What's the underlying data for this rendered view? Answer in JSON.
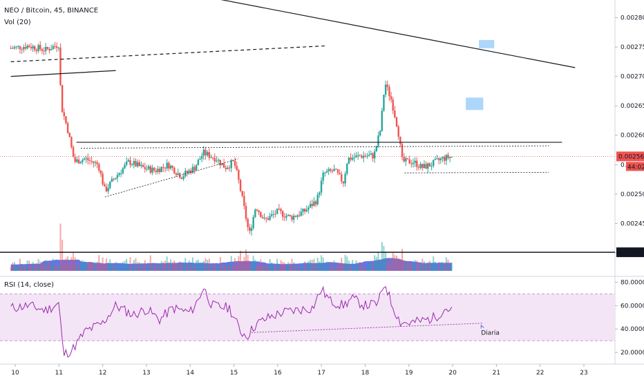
{
  "header": {
    "symbol": "NEO / Bitcoin, 45, BINANCE",
    "volume_indicator": "Vol (20)"
  },
  "rsi_panel": {
    "label": "RSI (14, close)",
    "annotation": "Diaria"
  },
  "price_axis": {
    "ticks": [
      "0.002800",
      "0.002750",
      "0.002700",
      "0.002650",
      "0.002600",
      "0.002550",
      "0.002500",
      "0.002450",
      "0.002400"
    ],
    "last_price": "0.002564",
    "countdown": "44:02",
    "support_level": "0.002401"
  },
  "rsi_axis": {
    "ticks": [
      "80.0000",
      "60.0000",
      "40.0000",
      "20.0000"
    ]
  },
  "time_axis": {
    "ticks": [
      "10",
      "11",
      "12",
      "13",
      "14",
      "15",
      "16",
      "17",
      "18",
      "19",
      "20",
      "21",
      "22",
      "23"
    ]
  },
  "colors": {
    "up": "#26a69a",
    "down": "#ef5350",
    "volume_ma": "#5b6ee8",
    "rsi_line": "#9c27b0",
    "rsi_band": "#f3e5f5",
    "last_price": "#ef5350",
    "target_box": "#90caf9"
  },
  "chart_data": {
    "type": "candlestick",
    "ylim": [
      0.00236,
      0.00283
    ],
    "rsi_ylim": [
      10,
      85
    ],
    "rsi_band": [
      30,
      70
    ],
    "last_price": 0.002564,
    "support_level": 0.002401,
    "x_ticks": [
      10,
      11,
      12,
      13,
      14,
      15,
      16,
      17,
      18,
      19,
      20,
      21,
      22,
      23
    ],
    "close_path": [
      [
        9.9,
        0.002748
      ],
      [
        10.3,
        0.002752
      ],
      [
        10.7,
        0.002745
      ],
      [
        11.0,
        0.002755
      ],
      [
        11.05,
        0.00265
      ],
      [
        11.2,
        0.00261
      ],
      [
        11.35,
        0.002555
      ],
      [
        11.6,
        0.00256
      ],
      [
        11.9,
        0.00255
      ],
      [
        12.05,
        0.002505
      ],
      [
        12.3,
        0.00253
      ],
      [
        12.6,
        0.002555
      ],
      [
        12.9,
        0.002545
      ],
      [
        13.2,
        0.00254
      ],
      [
        13.5,
        0.00255
      ],
      [
        13.8,
        0.00253
      ],
      [
        14.1,
        0.002545
      ],
      [
        14.3,
        0.00257
      ],
      [
        14.6,
        0.00256
      ],
      [
        14.8,
        0.002545
      ],
      [
        15.0,
        0.002555
      ],
      [
        15.1,
        0.002525
      ],
      [
        15.25,
        0.00247
      ],
      [
        15.35,
        0.00243
      ],
      [
        15.5,
        0.00248
      ],
      [
        15.7,
        0.002455
      ],
      [
        16.0,
        0.00247
      ],
      [
        16.3,
        0.00246
      ],
      [
        16.6,
        0.00247
      ],
      [
        16.9,
        0.00249
      ],
      [
        17.05,
        0.002535
      ],
      [
        17.3,
        0.00254
      ],
      [
        17.5,
        0.00252
      ],
      [
        17.6,
        0.00256
      ],
      [
        17.9,
        0.002565
      ],
      [
        18.2,
        0.002565
      ],
      [
        18.35,
        0.00261
      ],
      [
        18.45,
        0.00269
      ],
      [
        18.6,
        0.00266
      ],
      [
        18.75,
        0.00261
      ],
      [
        18.85,
        0.002555
      ],
      [
        19.1,
        0.002555
      ],
      [
        19.3,
        0.002545
      ],
      [
        19.5,
        0.00255
      ],
      [
        19.75,
        0.00256
      ],
      [
        20.0,
        0.002564
      ]
    ],
    "rsi_path": [
      [
        9.9,
        58
      ],
      [
        10.3,
        60
      ],
      [
        10.7,
        56
      ],
      [
        11.0,
        62
      ],
      [
        11.1,
        18
      ],
      [
        11.3,
        22
      ],
      [
        11.6,
        38
      ],
      [
        12.0,
        45
      ],
      [
        12.3,
        60
      ],
      [
        12.7,
        52
      ],
      [
        13.0,
        57
      ],
      [
        13.3,
        48
      ],
      [
        13.6,
        58
      ],
      [
        14.0,
        54
      ],
      [
        14.2,
        66
      ],
      [
        14.3,
        76
      ],
      [
        14.5,
        60
      ],
      [
        14.9,
        58
      ],
      [
        15.15,
        38
      ],
      [
        15.3,
        34
      ],
      [
        15.5,
        44
      ],
      [
        15.8,
        50
      ],
      [
        16.1,
        54
      ],
      [
        16.4,
        56
      ],
      [
        16.8,
        58
      ],
      [
        17.0,
        74
      ],
      [
        17.2,
        64
      ],
      [
        17.5,
        60
      ],
      [
        17.7,
        66
      ],
      [
        18.0,
        60
      ],
      [
        18.3,
        62
      ],
      [
        18.45,
        80
      ],
      [
        18.6,
        62
      ],
      [
        18.8,
        46
      ],
      [
        19.0,
        45
      ],
      [
        19.3,
        47
      ],
      [
        19.6,
        50
      ],
      [
        19.85,
        58
      ],
      [
        20.0,
        55
      ]
    ],
    "drawings": {
      "descending_trendline": [
        [
          14.4,
          0.002835
        ],
        [
          22.8,
          0.002715
        ]
      ],
      "dashed_trendline": [
        [
          9.9,
          0.002725
        ],
        [
          17.1,
          0.002752
        ]
      ],
      "upper_left_trendline": [
        [
          9.9,
          0.0027
        ],
        [
          12.3,
          0.00271
        ]
      ],
      "resistance_line": [
        [
          11.4,
          0.002588
        ],
        [
          22.5,
          0.002588
        ]
      ],
      "dotted_resistance": [
        [
          11.5,
          0.002578
        ],
        [
          22.2,
          0.002582
        ]
      ],
      "ascending_support": [
        [
          12.05,
          0.002495
        ],
        [
          15.1,
          0.00256
        ]
      ],
      "range_support": [
        [
          18.9,
          0.002536
        ],
        [
          22.2,
          0.002537
        ]
      ],
      "rsi_trendline": [
        [
          15.4,
          37
        ],
        [
          20.7,
          45
        ]
      ],
      "target_box_1": [
        [
          20.6,
          0.002748
        ],
        [
          20.95,
          0.002762
        ]
      ],
      "target_box_2": [
        [
          20.3,
          0.002643
        ],
        [
          20.7,
          0.002664
        ]
      ]
    }
  }
}
